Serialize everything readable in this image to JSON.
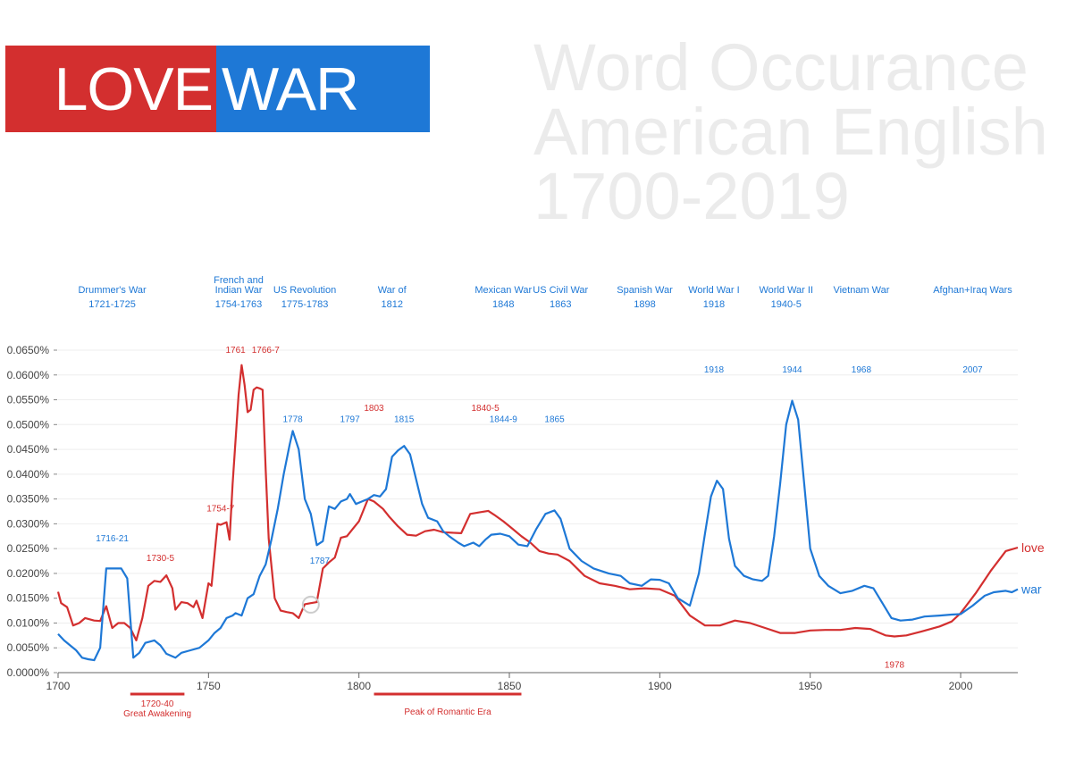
{
  "logo": {
    "love": "LOVE",
    "war": "WAR"
  },
  "title_lines": [
    "Word Occurance",
    "American English",
    "1700-2019"
  ],
  "colors": {
    "love": "#d32f2f",
    "war": "#1e78d6",
    "grid": "#eeeeee",
    "axis": "#555555",
    "title": "#ebebeb"
  },
  "chart_data": {
    "type": "line",
    "xlim": [
      1700,
      2019
    ],
    "ylim": [
      0,
      0.065
    ],
    "x_ticks": [
      1700,
      1750,
      1800,
      1850,
      1900,
      1950,
      2000
    ],
    "y_ticks": [
      "0.0000%",
      "0.0050%",
      "0.0100%",
      "0.0150%",
      "0.0200%",
      "0.0250%",
      "0.0300%",
      "0.0350%",
      "0.0400%",
      "0.0450%",
      "0.0500%",
      "0.0550%",
      "0.0600%",
      "0.0650%"
    ],
    "grid": true,
    "series": [
      {
        "name": "love",
        "color": "#d32f2f",
        "points": [
          [
            1700,
            0.0163
          ],
          [
            1701,
            0.014
          ],
          [
            1703,
            0.0132
          ],
          [
            1705,
            0.0095
          ],
          [
            1707,
            0.01
          ],
          [
            1709,
            0.011
          ],
          [
            1712,
            0.0105
          ],
          [
            1714,
            0.0104
          ],
          [
            1716,
            0.0134
          ],
          [
            1718,
            0.009
          ],
          [
            1720,
            0.01
          ],
          [
            1722,
            0.01
          ],
          [
            1724,
            0.009
          ],
          [
            1726,
            0.0065
          ],
          [
            1728,
            0.011
          ],
          [
            1730,
            0.0175
          ],
          [
            1732,
            0.0185
          ],
          [
            1734,
            0.0183
          ],
          [
            1736,
            0.0196
          ],
          [
            1738,
            0.017
          ],
          [
            1739,
            0.0127
          ],
          [
            1741,
            0.0142
          ],
          [
            1743,
            0.014
          ],
          [
            1745,
            0.0132
          ],
          [
            1746,
            0.0145
          ],
          [
            1748,
            0.011
          ],
          [
            1750,
            0.018
          ],
          [
            1751,
            0.0175
          ],
          [
            1753,
            0.03
          ],
          [
            1754,
            0.0298
          ],
          [
            1756,
            0.0303
          ],
          [
            1757,
            0.0268
          ],
          [
            1758,
            0.038
          ],
          [
            1760,
            0.056
          ],
          [
            1761,
            0.062
          ],
          [
            1762,
            0.058
          ],
          [
            1763,
            0.0525
          ],
          [
            1764,
            0.053
          ],
          [
            1765,
            0.057
          ],
          [
            1766,
            0.0575
          ],
          [
            1767,
            0.0573
          ],
          [
            1768,
            0.057
          ],
          [
            1769,
            0.041
          ],
          [
            1770,
            0.027
          ],
          [
            1772,
            0.015
          ],
          [
            1774,
            0.0125
          ],
          [
            1776,
            0.0122
          ],
          [
            1778,
            0.012
          ],
          [
            1780,
            0.011
          ],
          [
            1782,
            0.0138
          ],
          [
            1784,
            0.014
          ],
          [
            1786,
            0.0142
          ],
          [
            1788,
            0.021
          ],
          [
            1790,
            0.0222
          ],
          [
            1792,
            0.0232
          ],
          [
            1794,
            0.0272
          ],
          [
            1796,
            0.0275
          ],
          [
            1798,
            0.029
          ],
          [
            1800,
            0.0305
          ],
          [
            1803,
            0.035
          ],
          [
            1805,
            0.0345
          ],
          [
            1808,
            0.033
          ],
          [
            1810,
            0.0315
          ],
          [
            1813,
            0.0295
          ],
          [
            1816,
            0.0278
          ],
          [
            1819,
            0.0276
          ],
          [
            1822,
            0.0285
          ],
          [
            1825,
            0.0288
          ],
          [
            1828,
            0.0283
          ],
          [
            1831,
            0.0282
          ],
          [
            1834,
            0.0281
          ],
          [
            1837,
            0.032
          ],
          [
            1840,
            0.0323
          ],
          [
            1843,
            0.0326
          ],
          [
            1845,
            0.0318
          ],
          [
            1848,
            0.0305
          ],
          [
            1851,
            0.029
          ],
          [
            1854,
            0.0275
          ],
          [
            1857,
            0.0262
          ],
          [
            1860,
            0.0245
          ],
          [
            1863,
            0.024
          ],
          [
            1866,
            0.0238
          ],
          [
            1870,
            0.0225
          ],
          [
            1875,
            0.0195
          ],
          [
            1880,
            0.018
          ],
          [
            1885,
            0.0175
          ],
          [
            1890,
            0.0168
          ],
          [
            1895,
            0.017
          ],
          [
            1900,
            0.0168
          ],
          [
            1905,
            0.0155
          ],
          [
            1910,
            0.0115
          ],
          [
            1915,
            0.0095
          ],
          [
            1920,
            0.0095
          ],
          [
            1925,
            0.0105
          ],
          [
            1930,
            0.01
          ],
          [
            1935,
            0.009
          ],
          [
            1940,
            0.008
          ],
          [
            1945,
            0.008
          ],
          [
            1950,
            0.0085
          ],
          [
            1955,
            0.0086
          ],
          [
            1960,
            0.0086
          ],
          [
            1965,
            0.009
          ],
          [
            1970,
            0.0088
          ],
          [
            1975,
            0.0075
          ],
          [
            1978,
            0.0073
          ],
          [
            1982,
            0.0075
          ],
          [
            1987,
            0.0083
          ],
          [
            1993,
            0.0093
          ],
          [
            1997,
            0.0103
          ],
          [
            2000,
            0.012
          ],
          [
            2005,
            0.016
          ],
          [
            2010,
            0.0205
          ],
          [
            2015,
            0.0245
          ],
          [
            2019,
            0.0252
          ]
        ]
      },
      {
        "name": "war",
        "color": "#1e78d6",
        "points": [
          [
            1700,
            0.0078
          ],
          [
            1702,
            0.0065
          ],
          [
            1704,
            0.0055
          ],
          [
            1706,
            0.0045
          ],
          [
            1708,
            0.003
          ],
          [
            1710,
            0.0027
          ],
          [
            1712,
            0.0025
          ],
          [
            1714,
            0.005
          ],
          [
            1716,
            0.021
          ],
          [
            1718,
            0.021
          ],
          [
            1721,
            0.021
          ],
          [
            1723,
            0.019
          ],
          [
            1724,
            0.011
          ],
          [
            1725,
            0.003
          ],
          [
            1727,
            0.004
          ],
          [
            1729,
            0.006
          ],
          [
            1732,
            0.0065
          ],
          [
            1734,
            0.0055
          ],
          [
            1736,
            0.0038
          ],
          [
            1739,
            0.003
          ],
          [
            1741,
            0.004
          ],
          [
            1744,
            0.0045
          ],
          [
            1747,
            0.005
          ],
          [
            1750,
            0.0065
          ],
          [
            1752,
            0.008
          ],
          [
            1754,
            0.009
          ],
          [
            1756,
            0.011
          ],
          [
            1758,
            0.0115
          ],
          [
            1759,
            0.012
          ],
          [
            1761,
            0.0115
          ],
          [
            1763,
            0.015
          ],
          [
            1765,
            0.0158
          ],
          [
            1767,
            0.0195
          ],
          [
            1769,
            0.0218
          ],
          [
            1771,
            0.027
          ],
          [
            1773,
            0.033
          ],
          [
            1775,
            0.04
          ],
          [
            1777,
            0.046
          ],
          [
            1778,
            0.0487
          ],
          [
            1780,
            0.045
          ],
          [
            1782,
            0.035
          ],
          [
            1784,
            0.032
          ],
          [
            1786,
            0.0257
          ],
          [
            1788,
            0.0265
          ],
          [
            1790,
            0.0335
          ],
          [
            1792,
            0.033
          ],
          [
            1794,
            0.0345
          ],
          [
            1796,
            0.035
          ],
          [
            1797,
            0.036
          ],
          [
            1799,
            0.034
          ],
          [
            1801,
            0.0345
          ],
          [
            1803,
            0.035
          ],
          [
            1805,
            0.0358
          ],
          [
            1807,
            0.0355
          ],
          [
            1809,
            0.037
          ],
          [
            1811,
            0.0435
          ],
          [
            1813,
            0.0448
          ],
          [
            1815,
            0.0457
          ],
          [
            1817,
            0.044
          ],
          [
            1819,
            0.039
          ],
          [
            1821,
            0.034
          ],
          [
            1823,
            0.0312
          ],
          [
            1826,
            0.0305
          ],
          [
            1828,
            0.0285
          ],
          [
            1830,
            0.0275
          ],
          [
            1833,
            0.0262
          ],
          [
            1835,
            0.0255
          ],
          [
            1838,
            0.0262
          ],
          [
            1840,
            0.0255
          ],
          [
            1842,
            0.0268
          ],
          [
            1844,
            0.0278
          ],
          [
            1847,
            0.028
          ],
          [
            1850,
            0.0275
          ],
          [
            1853,
            0.0258
          ],
          [
            1856,
            0.0255
          ],
          [
            1859,
            0.029
          ],
          [
            1862,
            0.032
          ],
          [
            1865,
            0.0327
          ],
          [
            1867,
            0.031
          ],
          [
            1870,
            0.025
          ],
          [
            1874,
            0.0225
          ],
          [
            1878,
            0.021
          ],
          [
            1883,
            0.02
          ],
          [
            1887,
            0.0195
          ],
          [
            1890,
            0.018
          ],
          [
            1894,
            0.0175
          ],
          [
            1897,
            0.0188
          ],
          [
            1900,
            0.0187
          ],
          [
            1903,
            0.018
          ],
          [
            1906,
            0.015
          ],
          [
            1910,
            0.0135
          ],
          [
            1913,
            0.02
          ],
          [
            1915,
            0.028
          ],
          [
            1917,
            0.0355
          ],
          [
            1919,
            0.0387
          ],
          [
            1921,
            0.037
          ],
          [
            1923,
            0.027
          ],
          [
            1925,
            0.0215
          ],
          [
            1928,
            0.0195
          ],
          [
            1931,
            0.0188
          ],
          [
            1934,
            0.0185
          ],
          [
            1936,
            0.0195
          ],
          [
            1938,
            0.0275
          ],
          [
            1940,
            0.038
          ],
          [
            1942,
            0.05
          ],
          [
            1944,
            0.0548
          ],
          [
            1946,
            0.051
          ],
          [
            1948,
            0.038
          ],
          [
            1950,
            0.025
          ],
          [
            1953,
            0.0195
          ],
          [
            1956,
            0.0175
          ],
          [
            1960,
            0.016
          ],
          [
            1964,
            0.0165
          ],
          [
            1968,
            0.0175
          ],
          [
            1971,
            0.017
          ],
          [
            1974,
            0.014
          ],
          [
            1977,
            0.011
          ],
          [
            1980,
            0.0105
          ],
          [
            1984,
            0.0107
          ],
          [
            1988,
            0.0113
          ],
          [
            1993,
            0.0115
          ],
          [
            1997,
            0.0117
          ],
          [
            2000,
            0.0118
          ],
          [
            2004,
            0.0135
          ],
          [
            2008,
            0.0155
          ],
          [
            2011,
            0.0162
          ],
          [
            2015,
            0.0165
          ],
          [
            2017,
            0.0162
          ],
          [
            2019,
            0.0168
          ]
        ]
      }
    ],
    "series_labels": {
      "love": "love",
      "war": "war"
    },
    "war_header_labels": [
      {
        "name": "Drummer's War",
        "year": "1721-1725",
        "at": 1718
      },
      {
        "name": "French and\nIndian War",
        "year": "1754-1763",
        "at": 1760
      },
      {
        "name": "US Revolution",
        "year": "1775-1783",
        "at": 1782
      },
      {
        "name": "War of",
        "year": "1812",
        "at": 1811
      },
      {
        "name": "Mexican War",
        "year": "1848",
        "at": 1848
      },
      {
        "name": "US Civil War",
        "year": "1863",
        "at": 1867
      },
      {
        "name": "Spanish War",
        "year": "1898",
        "at": 1895
      },
      {
        "name": "World War I",
        "year": "1918",
        "at": 1918
      },
      {
        "name": "World War II",
        "year": "1940-5",
        "at": 1942
      },
      {
        "name": "Vietnam War",
        "year": "",
        "at": 1967
      },
      {
        "name": "Afghan+Iraq Wars",
        "year": "",
        "at": 2004
      }
    ],
    "annotations": [
      {
        "text": "1761",
        "x": 1759,
        "y": 0.0645,
        "series": "love"
      },
      {
        "text": "1766-7",
        "x": 1769,
        "y": 0.0645,
        "series": "love"
      },
      {
        "text": "1754-7",
        "x": 1754,
        "y": 0.0325,
        "series": "love"
      },
      {
        "text": "1730-5",
        "x": 1734,
        "y": 0.0225,
        "series": "love"
      },
      {
        "text": "1803",
        "x": 1805,
        "y": 0.0528,
        "series": "love"
      },
      {
        "text": "1840-5",
        "x": 1842,
        "y": 0.0528,
        "series": "love"
      },
      {
        "text": "1978",
        "x": 1978,
        "y": 0.001,
        "series": "love"
      },
      {
        "text": "1716-21",
        "x": 1718,
        "y": 0.0265,
        "series": "war"
      },
      {
        "text": "1778",
        "x": 1778,
        "y": 0.0505,
        "series": "war"
      },
      {
        "text": "1797",
        "x": 1797,
        "y": 0.0505,
        "series": "war"
      },
      {
        "text": "1815",
        "x": 1815,
        "y": 0.0505,
        "series": "war"
      },
      {
        "text": "1844-9",
        "x": 1848,
        "y": 0.0505,
        "series": "war"
      },
      {
        "text": "1865",
        "x": 1865,
        "y": 0.0505,
        "series": "war"
      },
      {
        "text": "1787",
        "x": 1787,
        "y": 0.022,
        "series": "war"
      },
      {
        "text": "1918",
        "x": 1918,
        "y": 0.0605,
        "series": "war"
      },
      {
        "text": "1944",
        "x": 1944,
        "y": 0.0605,
        "series": "war"
      },
      {
        "text": "1968",
        "x": 1967,
        "y": 0.0605,
        "series": "war"
      },
      {
        "text": "2007",
        "x": 2004,
        "y": 0.0605,
        "series": "war"
      }
    ],
    "periods": [
      {
        "label_top": "1720-40",
        "label_bottom": "Great Awakening",
        "start": 1724,
        "end": 1742
      },
      {
        "label_top": "",
        "label_bottom": "Peak of Romantic Era",
        "start": 1805,
        "end": 1854
      }
    ]
  }
}
